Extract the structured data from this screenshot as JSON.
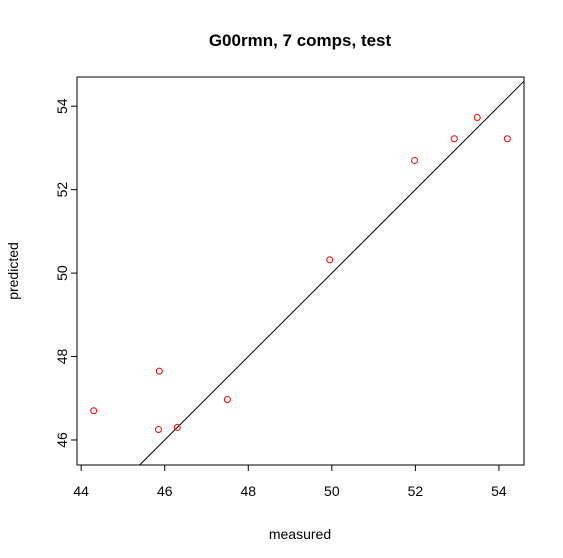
{
  "chart_data": {
    "type": "scatter",
    "title": "G00rmn, 7 comps, test",
    "xlabel": "measured",
    "ylabel": "predicted",
    "xlim": [
      43.9,
      54.6
    ],
    "ylim": [
      45.4,
      54.7
    ],
    "xticks": [
      "44",
      "46",
      "48",
      "50",
      "52",
      "54"
    ],
    "yticks": [
      "46",
      "48",
      "50",
      "52",
      "54"
    ],
    "point_color": "#ff0000",
    "line_color": "#000000",
    "reference_line": {
      "intercept": 0,
      "slope": 1
    },
    "points": [
      {
        "x": 44.3,
        "y": 46.7
      },
      {
        "x": 45.85,
        "y": 46.25
      },
      {
        "x": 45.87,
        "y": 47.65
      },
      {
        "x": 46.3,
        "y": 46.3
      },
      {
        "x": 47.5,
        "y": 46.97
      },
      {
        "x": 49.95,
        "y": 50.32
      },
      {
        "x": 51.98,
        "y": 52.7
      },
      {
        "x": 52.93,
        "y": 53.22
      },
      {
        "x": 53.48,
        "y": 53.73
      },
      {
        "x": 54.2,
        "y": 53.22
      }
    ]
  }
}
